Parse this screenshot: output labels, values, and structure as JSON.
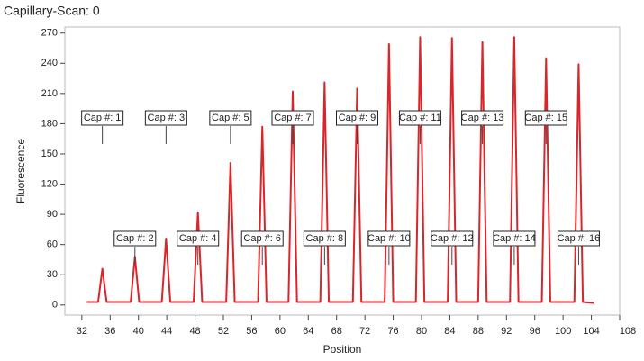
{
  "chart_data": {
    "type": "line",
    "title": "Capillary-Scan: 0",
    "xlabel": "Position",
    "ylabel": "Fluorescence",
    "x": [
      32.7,
      34.3,
      34.9,
      35.5,
      38.9,
      39.5,
      40.1,
      43.3,
      43.9,
      44.5,
      47.8,
      48.4,
      49.0,
      52.4,
      53.0,
      53.6,
      56.9,
      57.5,
      58.1,
      61.2,
      61.8,
      62.4,
      65.7,
      66.3,
      66.9,
      70.3,
      70.9,
      71.5,
      74.8,
      75.4,
      76.0,
      79.2,
      79.8,
      80.4,
      83.7,
      84.3,
      84.9,
      88.0,
      88.6,
      89.2,
      92.5,
      93.1,
      93.7,
      97.0,
      97.6,
      98.2,
      101.6,
      102.2,
      102.8,
      104.3
    ],
    "series": [
      {
        "color": "#d9262b",
        "values": [
          3,
          3,
          36,
          3,
          3,
          48,
          3,
          3,
          66,
          3,
          3,
          92,
          3,
          3,
          141,
          3,
          3,
          177,
          3,
          3,
          212,
          3,
          3,
          221,
          3,
          3,
          215,
          3,
          3,
          259,
          3,
          3,
          266,
          3,
          3,
          265,
          3,
          3,
          261,
          3,
          3,
          266,
          3,
          3,
          245,
          3,
          3,
          239,
          3,
          2
        ]
      }
    ],
    "annotations": [
      "Cap #: 1",
      "Cap #: 2",
      "Cap #: 3",
      "Cap #: 4",
      "Cap #: 5",
      "Cap #: 6",
      "Cap #: 7",
      "Cap #: 8",
      "Cap #: 9",
      "Cap #: 10",
      "Cap #: 11",
      "Cap #: 12",
      "Cap #: 13",
      "Cap #: 14",
      "Cap #: 15",
      "Cap #: 16"
    ],
    "xlim": [
      29.6,
      108
    ],
    "ylim": [
      -10,
      276
    ],
    "xticks": [
      32,
      36,
      40,
      44,
      48,
      52,
      56,
      60,
      64,
      68,
      72,
      76,
      80,
      84,
      88,
      92,
      96,
      100,
      104,
      108
    ],
    "yticks": [
      0,
      30,
      60,
      90,
      120,
      150,
      180,
      210,
      240,
      270
    ]
  }
}
